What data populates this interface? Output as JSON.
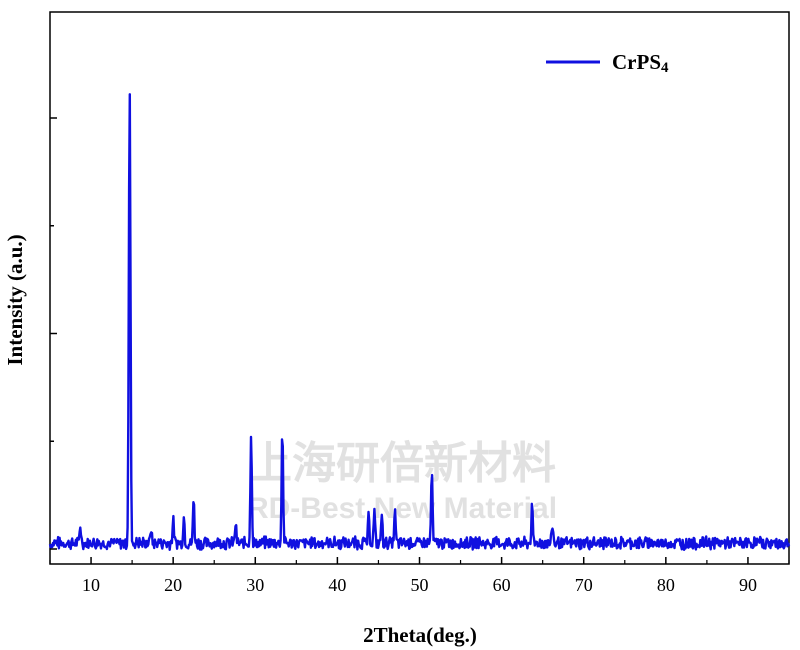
{
  "watermark": {
    "line1": "上海研倍新材料",
    "line2": "RD-Best New Material"
  },
  "chart_data": {
    "type": "line",
    "xlabel": "2Theta(deg.)",
    "ylabel": "Intensity (a.u.)",
    "xlim": [
      5,
      95
    ],
    "ylim": [
      0,
      1
    ],
    "x_ticks": [
      10,
      20,
      30,
      40,
      50,
      60,
      70,
      80,
      90
    ],
    "y_ticks_labeled": false,
    "grid": false,
    "legend": {
      "position": "top-right",
      "color": "#1010e0"
    },
    "series": [
      {
        "name": "CrPS4",
        "color": "#1010e0",
        "baseline": 0.01,
        "noise": 0.012,
        "peaks": [
          {
            "x": 8.7,
            "y": 0.04
          },
          {
            "x": 14.7,
            "y": 1.0
          },
          {
            "x": 17.3,
            "y": 0.035
          },
          {
            "x": 20.0,
            "y": 0.05
          },
          {
            "x": 21.3,
            "y": 0.06
          },
          {
            "x": 22.5,
            "y": 0.1
          },
          {
            "x": 27.6,
            "y": 0.04
          },
          {
            "x": 29.5,
            "y": 0.25
          },
          {
            "x": 33.3,
            "y": 0.26
          },
          {
            "x": 43.8,
            "y": 0.06
          },
          {
            "x": 44.5,
            "y": 0.07
          },
          {
            "x": 45.4,
            "y": 0.06
          },
          {
            "x": 47.0,
            "y": 0.07
          },
          {
            "x": 51.5,
            "y": 0.16
          },
          {
            "x": 63.7,
            "y": 0.08
          },
          {
            "x": 66.2,
            "y": 0.04
          }
        ]
      }
    ]
  }
}
